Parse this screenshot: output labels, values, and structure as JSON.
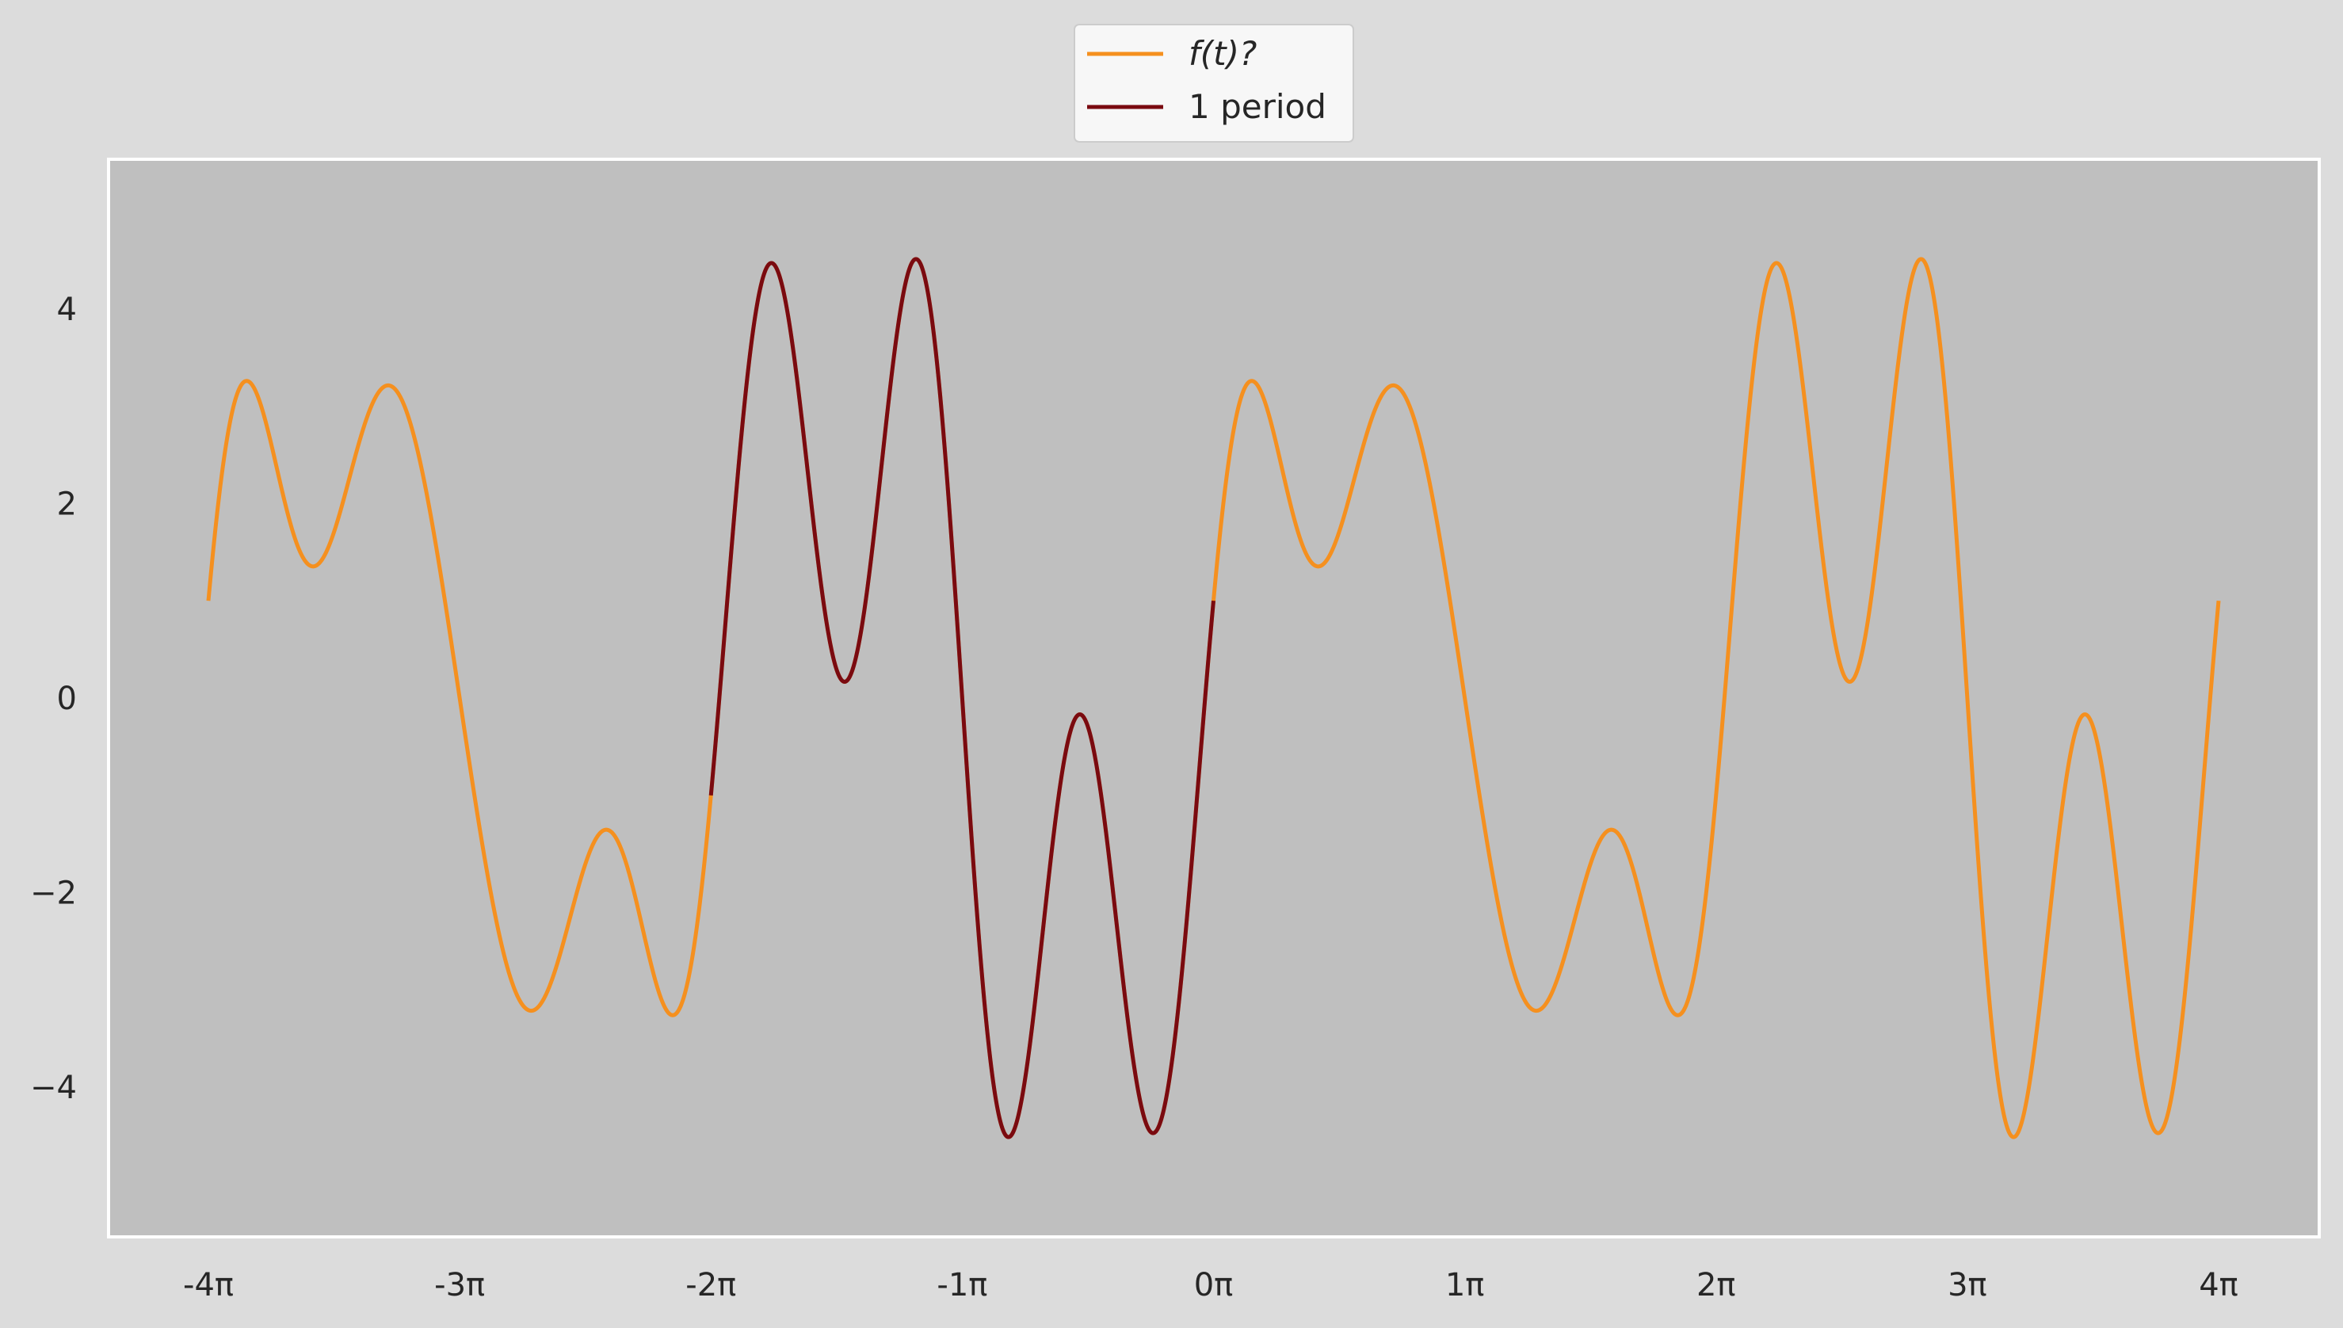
{
  "chart_data": {
    "type": "line",
    "function": "3*sin(t) + 2*sin(3t) + cos(3.5t)",
    "x_domain": [
      "-4π",
      "4π"
    ],
    "ylim": [
      -5.5,
      5.5
    ],
    "xticks": [
      {
        "value": -4,
        "label": "-4π"
      },
      {
        "value": -3,
        "label": "-3π"
      },
      {
        "value": -2,
        "label": "-2π"
      },
      {
        "value": -1,
        "label": "-1π"
      },
      {
        "value": 0,
        "label": "0π"
      },
      {
        "value": 1,
        "label": "1π"
      },
      {
        "value": 2,
        "label": "2π"
      },
      {
        "value": 3,
        "label": "3π"
      },
      {
        "value": 4,
        "label": "4π"
      }
    ],
    "yticks": [
      {
        "value": 4,
        "label": "4"
      },
      {
        "value": 2,
        "label": "2"
      },
      {
        "value": 0,
        "label": "0"
      },
      {
        "value": -2,
        "label": "−2"
      },
      {
        "value": -4,
        "label": "−4"
      }
    ],
    "series": [
      {
        "name": "f(t)?",
        "color": "#f5901f",
        "t_range_pi": [
          -4,
          4
        ]
      },
      {
        "name": "1 period",
        "color": "#7a0a10",
        "t_range_pi": [
          -2,
          0
        ]
      }
    ],
    "legend": {
      "position": "top-center"
    },
    "grid": false,
    "colors": {
      "plot_background": "#bfbfbf",
      "figure_background": "#dcdcdc",
      "axes_edge": "#ffffff"
    }
  }
}
